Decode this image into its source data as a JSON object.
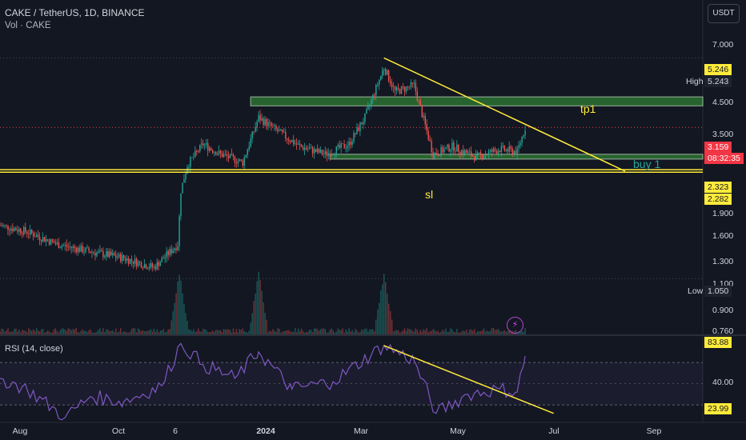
{
  "header": {
    "title": "CAKE / TetherUS, 1D, BINANCE",
    "volume": "Vol · CAKE",
    "currency_button": "USDT"
  },
  "rsi_title": "RSI (14, close)",
  "price_axis": {
    "ticks": [
      "7.000",
      "4.500",
      "3.500",
      "1.900",
      "1.600",
      "1.300",
      "1.100",
      "0.900",
      "0.760"
    ],
    "badges": {
      "high_value": "5.246",
      "high_tag": "High",
      "high_tag_value": "5.243",
      "last_price": "3.159",
      "countdown": "08:32:35",
      "line_a": "2.323",
      "line_b": "2.282",
      "low_tag": "Low",
      "low_value": "1.050"
    }
  },
  "rsi_axis": {
    "level": "40.00",
    "badge_high": "83.88",
    "badge_low": "23.99"
  },
  "time_axis": [
    "Aug",
    "Oct",
    "6",
    "2024",
    "Mar",
    "May",
    "Jul",
    "Sep"
  ],
  "annotations": {
    "tp1": "tp1",
    "buy": "buy 1",
    "sl": "sl"
  },
  "colors": {
    "background": "#131722",
    "up": "#26a69a",
    "down": "#ef5350",
    "trendline": "#ffeb3b",
    "zone_fill": "#2e7d32",
    "rsi": "#7e57c2",
    "last_price": "#f23645"
  },
  "chart_data": [
    {
      "type": "candlestick",
      "title": "CAKE / TetherUS, 1D, BINANCE",
      "y_scale": "log",
      "ylim": [
        0.7,
        8.0
      ],
      "x_range": [
        "2023-07-15",
        "2024-09-30"
      ],
      "close_series": [
        {
          "date": "2023-07-15",
          "value": 1.55
        },
        {
          "date": "2023-08-01",
          "value": 1.48
        },
        {
          "date": "2023-08-20",
          "value": 1.35
        },
        {
          "date": "2023-09-10",
          "value": 1.28
        },
        {
          "date": "2023-10-01",
          "value": 1.22
        },
        {
          "date": "2023-10-20",
          "value": 1.14
        },
        {
          "date": "2023-11-04",
          "value": 1.35
        },
        {
          "date": "2023-11-06",
          "value": 2.0
        },
        {
          "date": "2023-11-10",
          "value": 2.4
        },
        {
          "date": "2023-11-20",
          "value": 2.8
        },
        {
          "date": "2023-12-01",
          "value": 2.6
        },
        {
          "date": "2023-12-15",
          "value": 2.45
        },
        {
          "date": "2023-12-25",
          "value": 3.4
        },
        {
          "date": "2024-01-05",
          "value": 3.1
        },
        {
          "date": "2024-01-20",
          "value": 2.75
        },
        {
          "date": "2024-02-05",
          "value": 2.6
        },
        {
          "date": "2024-02-20",
          "value": 2.8
        },
        {
          "date": "2024-03-01",
          "value": 3.4
        },
        {
          "date": "2024-03-13",
          "value": 4.9
        },
        {
          "date": "2024-03-20",
          "value": 4.1
        },
        {
          "date": "2024-04-01",
          "value": 4.3
        },
        {
          "date": "2024-04-13",
          "value": 2.6
        },
        {
          "date": "2024-04-25",
          "value": 2.75
        },
        {
          "date": "2024-05-10",
          "value": 2.55
        },
        {
          "date": "2024-05-25",
          "value": 2.7
        },
        {
          "date": "2024-06-05",
          "value": 2.65
        },
        {
          "date": "2024-06-10",
          "value": 3.159
        }
      ],
      "high": 5.246,
      "low": 1.05,
      "last_price": 3.159,
      "horizontal_lines": [
        2.323,
        2.282
      ],
      "zones": [
        {
          "name": "tp1",
          "from": 3.7,
          "to": 3.95
        },
        {
          "name": "buy 1",
          "from": 2.52,
          "to": 2.6
        }
      ],
      "trendline": {
        "start": {
          "date": "2024-03-13",
          "value": 5.246
        },
        "end": {
          "date": "2024-08-12",
          "value": 2.3
        }
      },
      "volume_spikes": [
        "2023-11-05",
        "2023-12-25",
        "2024-03-13"
      ]
    },
    {
      "type": "line",
      "title": "RSI (14, close)",
      "ylim": [
        15,
        95
      ],
      "levels": [
        70,
        30
      ],
      "series": [
        {
          "values": [
            {
              "date": "2023-07-15",
              "value": 55
            },
            {
              "date": "2023-08-01",
              "value": 45
            },
            {
              "date": "2023-08-25",
              "value": 18
            },
            {
              "date": "2023-09-10",
              "value": 38
            },
            {
              "date": "2023-10-01",
              "value": 33
            },
            {
              "date": "2023-10-25",
              "value": 48
            },
            {
              "date": "2023-11-06",
              "value": 88
            },
            {
              "date": "2023-11-20",
              "value": 68
            },
            {
              "date": "2023-12-10",
              "value": 55
            },
            {
              "date": "2023-12-25",
              "value": 80
            },
            {
              "date": "2024-01-15",
              "value": 45
            },
            {
              "date": "2024-02-10",
              "value": 52
            },
            {
              "date": "2024-03-13",
              "value": 86
            },
            {
              "date": "2024-04-01",
              "value": 72
            },
            {
              "date": "2024-04-15",
              "value": 22
            },
            {
              "date": "2024-05-05",
              "value": 40
            },
            {
              "date": "2024-05-25",
              "value": 45
            },
            {
              "date": "2024-06-05",
              "value": 42
            },
            {
              "date": "2024-06-10",
              "value": 76
            }
          ]
        }
      ],
      "trendline": {
        "start": {
          "date": "2024-03-13",
          "value": 86
        },
        "end": {
          "date": "2024-06-28",
          "value": 22
        }
      }
    }
  ]
}
